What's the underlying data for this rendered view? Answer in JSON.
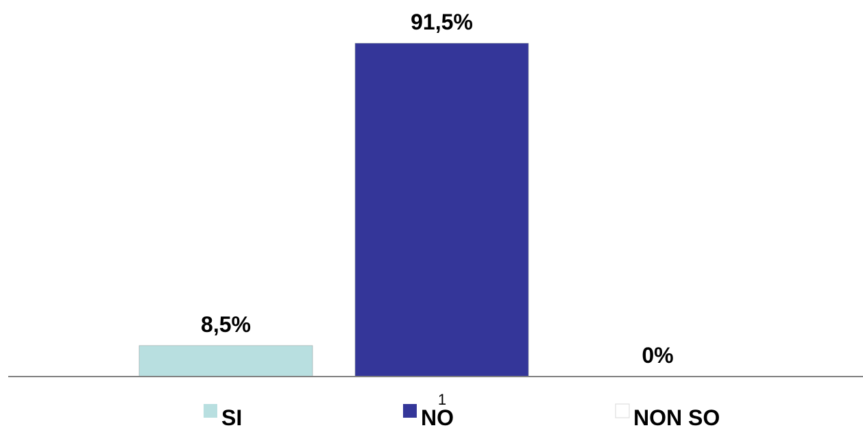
{
  "chart_data": {
    "type": "bar",
    "categories": [
      "1"
    ],
    "series": [
      {
        "name": "SI",
        "values": [
          8.5
        ],
        "label": "8,5%",
        "color": "#b8dfe0"
      },
      {
        "name": "NO",
        "values": [
          91.5
        ],
        "label": "91,5%",
        "color": "#343699"
      },
      {
        "name": "NON SO",
        "values": [
          0
        ],
        "label": "0%",
        "color": "#ffffff"
      }
    ],
    "ylim": [
      0,
      91.5
    ],
    "grid": false,
    "legend": "bottom",
    "unit": "%"
  }
}
